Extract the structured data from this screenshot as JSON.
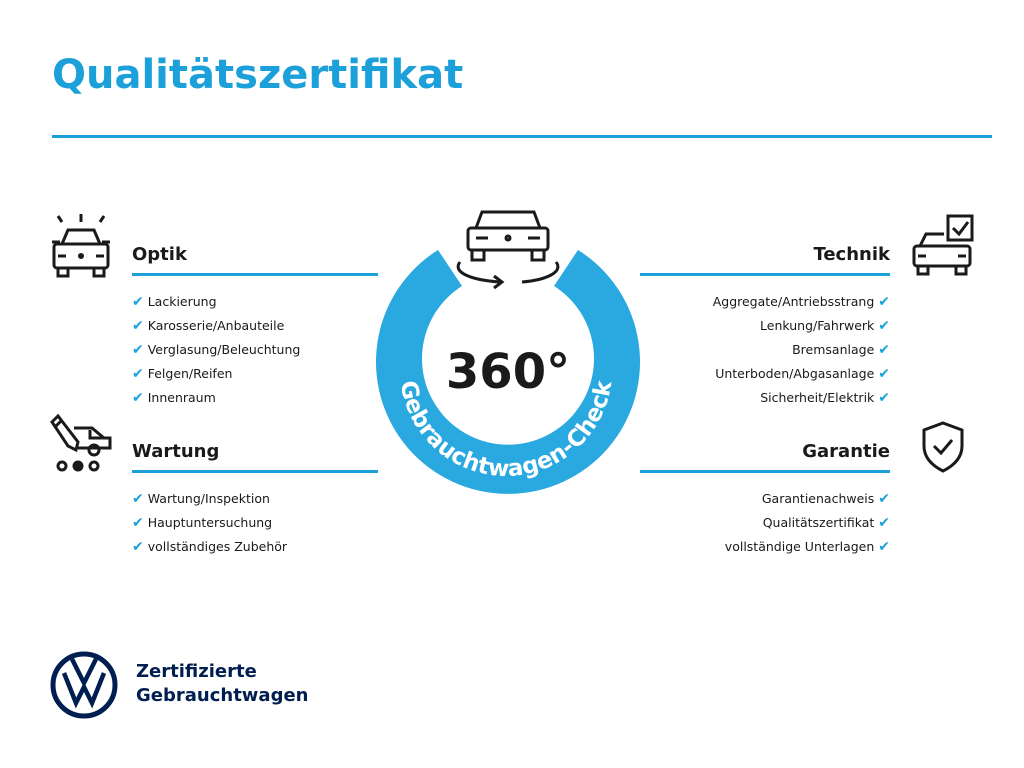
{
  "title": "Qualitätszertifikat",
  "center": {
    "number": "360°",
    "ring_text": "Gebrauchtwagen-Check"
  },
  "check_glyph": "✔",
  "sections": {
    "optik": {
      "heading": "Optik",
      "icon": "car-lights-icon",
      "items": [
        "Lackierung",
        "Karosserie/Anbauteile",
        "Verglasung/Beleuchtung",
        "Felgen/Reifen",
        "Innenraum"
      ]
    },
    "wartung": {
      "heading": "Wartung",
      "icon": "service-van-pencil-icon",
      "items": [
        "Wartung/Inspektion",
        "Hauptuntersuchung",
        "vollständiges Zubehör"
      ]
    },
    "technik": {
      "heading": "Technik",
      "icon": "car-checkbox-icon",
      "items": [
        "Aggregate/Antriebsstrang",
        "Lenkung/Fahrwerk",
        "Bremsanlage",
        "Unterboden/Abgasanlage",
        "Sicherheit/Elektrik"
      ]
    },
    "garantie": {
      "heading": "Garantie",
      "icon": "shield-check-icon",
      "items": [
        "Garantienachweis",
        "Qualitätszertifikat",
        "vollständige Unterlagen"
      ]
    }
  },
  "brand": {
    "line1": "Zertifizierte",
    "line2": "Gebrauchtwagen",
    "logo": "VW"
  },
  "colors": {
    "accent": "#1ca0da",
    "brand_navy": "#001e50",
    "text": "#1a1a1a"
  }
}
